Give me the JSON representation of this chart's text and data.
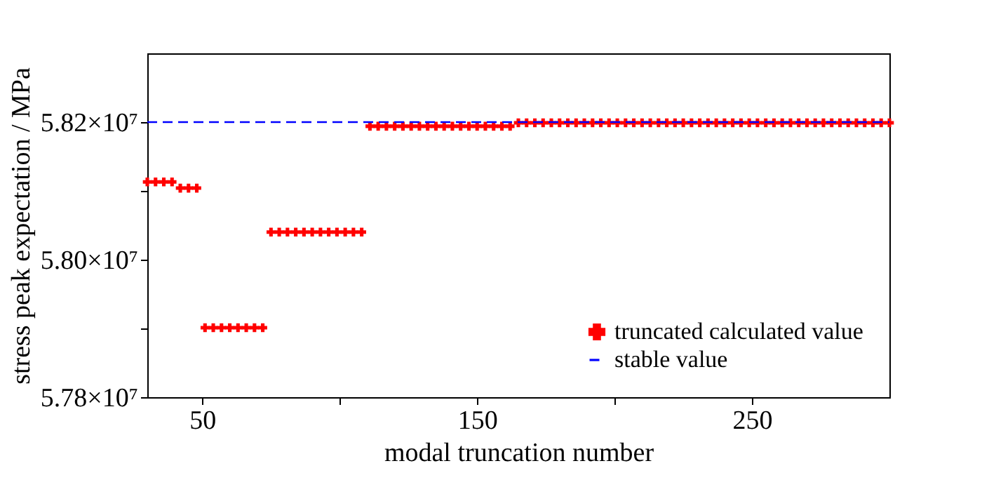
{
  "chart_data": {
    "type": "scatter",
    "xlabel": "modal truncation number",
    "ylabel": "stress peak expectation / MPa",
    "series": [
      {
        "name": "truncated calculated value",
        "color": "#ff0000",
        "marker": "cross",
        "x": [
          30,
          33,
          36,
          39,
          42,
          45,
          48,
          51,
          54,
          57,
          60,
          63,
          66,
          69,
          72,
          75,
          78,
          81,
          84,
          87,
          90,
          93,
          96,
          99,
          102,
          105,
          108,
          111,
          114,
          117,
          120,
          123,
          126,
          129,
          132,
          135,
          138,
          141,
          144,
          147,
          150,
          153,
          156,
          159,
          162,
          165,
          168,
          171,
          174,
          177,
          180,
          183,
          186,
          189,
          192,
          195,
          198,
          201,
          204,
          207,
          210,
          213,
          216,
          219,
          222,
          225,
          228,
          231,
          234,
          237,
          240,
          243,
          246,
          249,
          252,
          255,
          258,
          261,
          264,
          267,
          270,
          273,
          276,
          279,
          282,
          285,
          288,
          291,
          294,
          297,
          300
        ],
        "values": [
          58113000,
          58113000,
          58113000,
          58113000,
          58104000,
          58104000,
          58104000,
          57901000,
          57901000,
          57901000,
          57901000,
          57901000,
          57901000,
          57901000,
          57901000,
          58040000,
          58040000,
          58040000,
          58040000,
          58040000,
          58040000,
          58040000,
          58040000,
          58040000,
          58040000,
          58040000,
          58040000,
          58194000,
          58194000,
          58194000,
          58194000,
          58194000,
          58194000,
          58194000,
          58194000,
          58194000,
          58194000,
          58194000,
          58194000,
          58194000,
          58194000,
          58194000,
          58194000,
          58194000,
          58194000,
          58199000,
          58199000,
          58199000,
          58199000,
          58199000,
          58199000,
          58199000,
          58199000,
          58199000,
          58199000,
          58199000,
          58199000,
          58199000,
          58199000,
          58199000,
          58199000,
          58199000,
          58199000,
          58199000,
          58199000,
          58199000,
          58199000,
          58199000,
          58199000,
          58199000,
          58199000,
          58199000,
          58199000,
          58199000,
          58199000,
          58199000,
          58199000,
          58199000,
          58199000,
          58199000,
          58199000,
          58199000,
          58199000,
          58199000,
          58199000,
          58199000,
          58199000,
          58199000,
          58199000,
          58199000,
          58199000
        ]
      },
      {
        "name": "stable value",
        "type": "line",
        "color": "#0000ff",
        "line_style": "dashed",
        "marker": "none",
        "x": [
          30,
          300
        ],
        "values": [
          58200000,
          58200000
        ]
      }
    ],
    "xlim": [
      30,
      300
    ],
    "xticks": [
      50,
      {
        "value": 100,
        "label": null
      },
      150,
      {
        "value": 200,
        "label": null
      },
      250
    ],
    "ylim": [
      57800000,
      58300000
    ],
    "yticks": [
      {
        "value": 57800000,
        "label": "5.78×10⁷"
      },
      {
        "value": 57900000,
        "label": null
      },
      {
        "value": 58000000,
        "label": "5.80×10⁷"
      },
      {
        "value": 58100000,
        "label": null
      },
      {
        "value": 58200000,
        "label": "5.82×10⁷"
      }
    ],
    "grid": false,
    "legend": "bottom right"
  }
}
